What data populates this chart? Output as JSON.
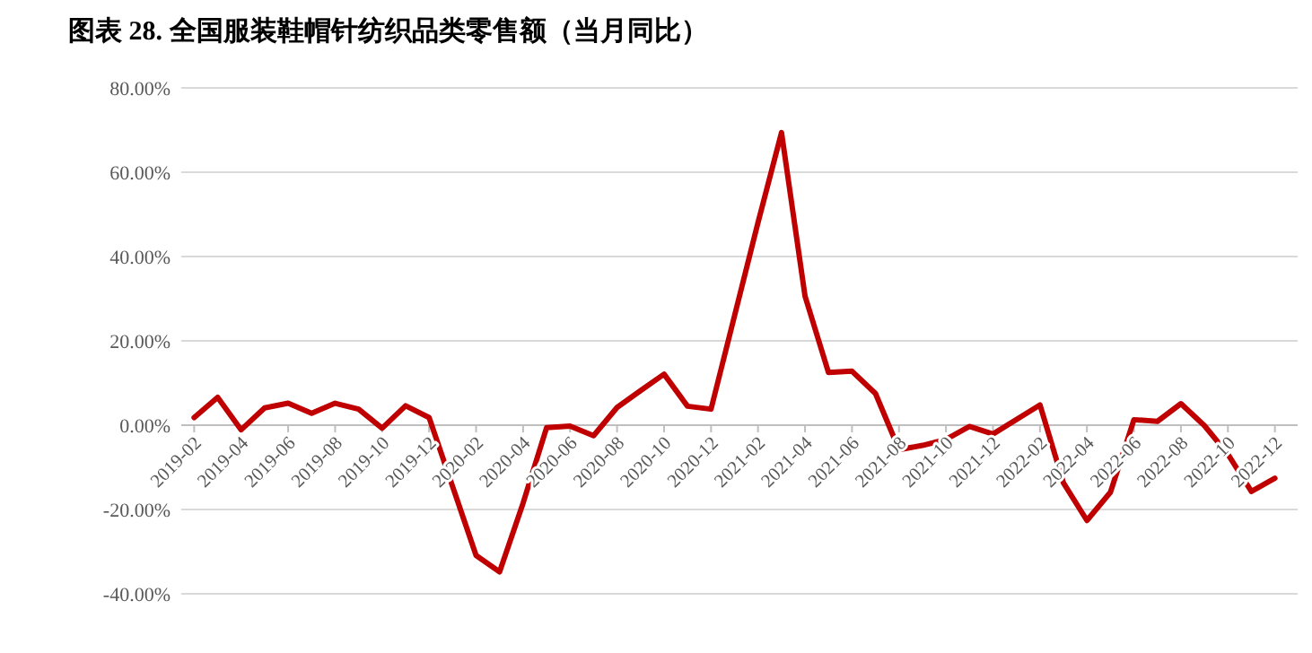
{
  "chart_data": {
    "type": "line",
    "title": "图表 28. 全国服装鞋帽针纺织品类零售额（当月同比）",
    "x": [
      "2019-02",
      "2019-03",
      "2019-04",
      "2019-05",
      "2019-06",
      "2019-07",
      "2019-08",
      "2019-09",
      "2019-10",
      "2019-11",
      "2019-12",
      "2020-02",
      "2020-03",
      "2020-04",
      "2020-05",
      "2020-06",
      "2020-07",
      "2020-08",
      "2020-09",
      "2020-10",
      "2020-11",
      "2020-12",
      "2021-02",
      "2021-03",
      "2021-04",
      "2021-05",
      "2021-06",
      "2021-07",
      "2021-08",
      "2021-09",
      "2021-10",
      "2021-11",
      "2021-12",
      "2022-02",
      "2022-03",
      "2022-04",
      "2022-05",
      "2022-06",
      "2022-07",
      "2022-08",
      "2022-09",
      "2022-10",
      "2022-11",
      "2022-12"
    ],
    "series": [
      {
        "color": "#c00000",
        "values": [
          1.8,
          6.6,
          -1.1,
          4.1,
          5.2,
          2.8,
          5.2,
          3.8,
          -0.7,
          4.6,
          1.8,
          -30.9,
          -34.8,
          -18.5,
          -0.6,
          -0.2,
          -2.5,
          4.2,
          8.2,
          12.1,
          4.5,
          3.8,
          48.1,
          69.4,
          30.6,
          12.5,
          12.8,
          7.5,
          -5.8,
          -4.8,
          -3.4,
          -0.3,
          -2.1,
          4.8,
          -13.7,
          -22.6,
          -15.9,
          1.3,
          0.9,
          5.1,
          -0.1,
          -6.9,
          -15.7,
          -12.6
        ]
      }
    ],
    "xlim": [
      "2019-01-15",
      "2022-12-31"
    ],
    "xticks": [
      "2019-02",
      "2019-04",
      "2019-06",
      "2019-08",
      "2019-10",
      "2019-12",
      "2020-02",
      "2020-04",
      "2020-06",
      "2020-08",
      "2020-10",
      "2020-12",
      "2021-02",
      "2021-04",
      "2021-06",
      "2021-08",
      "2021-10",
      "2021-12",
      "2022-02",
      "2022-04",
      "2022-06",
      "2022-08",
      "2022-10",
      "2022-12"
    ],
    "ylim": [
      -40,
      80
    ],
    "yticks": [
      {
        "value": -40,
        "label": "-40.00%"
      },
      {
        "value": -20,
        "label": "-20.00%"
      },
      {
        "value": 0,
        "label": "0.00%"
      },
      {
        "value": 20,
        "label": "20.00%"
      },
      {
        "value": 40,
        "label": "40.00%"
      },
      {
        "value": 60,
        "label": "60.00%"
      },
      {
        "value": 80,
        "label": "80.00%"
      }
    ],
    "grid": "y",
    "marker": "none",
    "line_style": "solid"
  }
}
